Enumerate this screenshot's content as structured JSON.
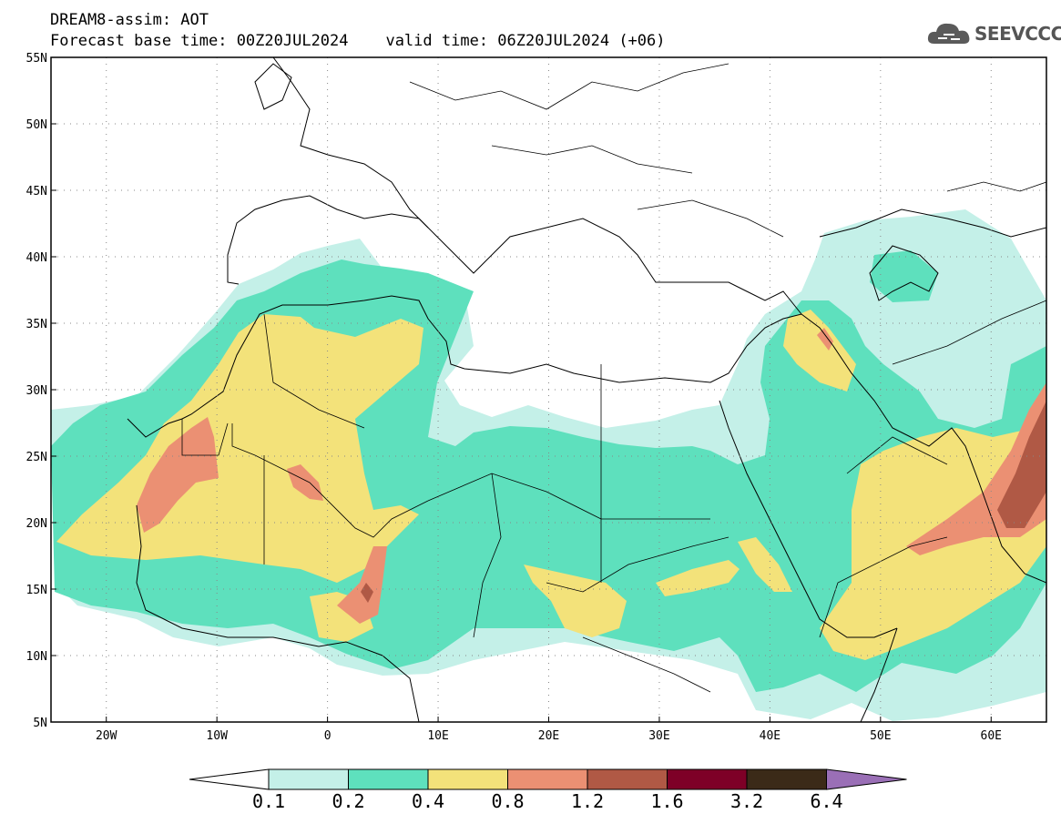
{
  "title": {
    "line1": "DREAM8-assim: AOT",
    "line2": "Forecast base time: 00Z20JUL2024    valid time: 06Z20JUL2024 (+06)"
  },
  "logo": {
    "text": "SEEVCCC",
    "icon": "cloud-icon"
  },
  "map": {
    "lon_range": [
      -25,
      65
    ],
    "lat_range": [
      5,
      55
    ],
    "lat_labels": [
      "55N",
      "50N",
      "45N",
      "40N",
      "35N",
      "30N",
      "25N",
      "20N",
      "15N",
      "10N",
      "5N"
    ],
    "lon_labels": [
      "20W",
      "10W",
      "0",
      "10E",
      "20E",
      "30E",
      "40E",
      "50E",
      "60E"
    ],
    "gridlines": "dotted",
    "variable": "Aerosol Optical Thickness (AOT)"
  },
  "colorbar": {
    "levels": [
      "0.1",
      "0.2",
      "0.4",
      "0.8",
      "1.2",
      "1.6",
      "3.2",
      "6.4"
    ],
    "colors": [
      "#c4f0e8",
      "#5ee0bd",
      "#f3e27a",
      "#eb9073",
      "#b05945",
      "#7e0027",
      "#3b2a18",
      "#9a6fb6"
    ],
    "underflow_color": "#ffffff"
  }
}
